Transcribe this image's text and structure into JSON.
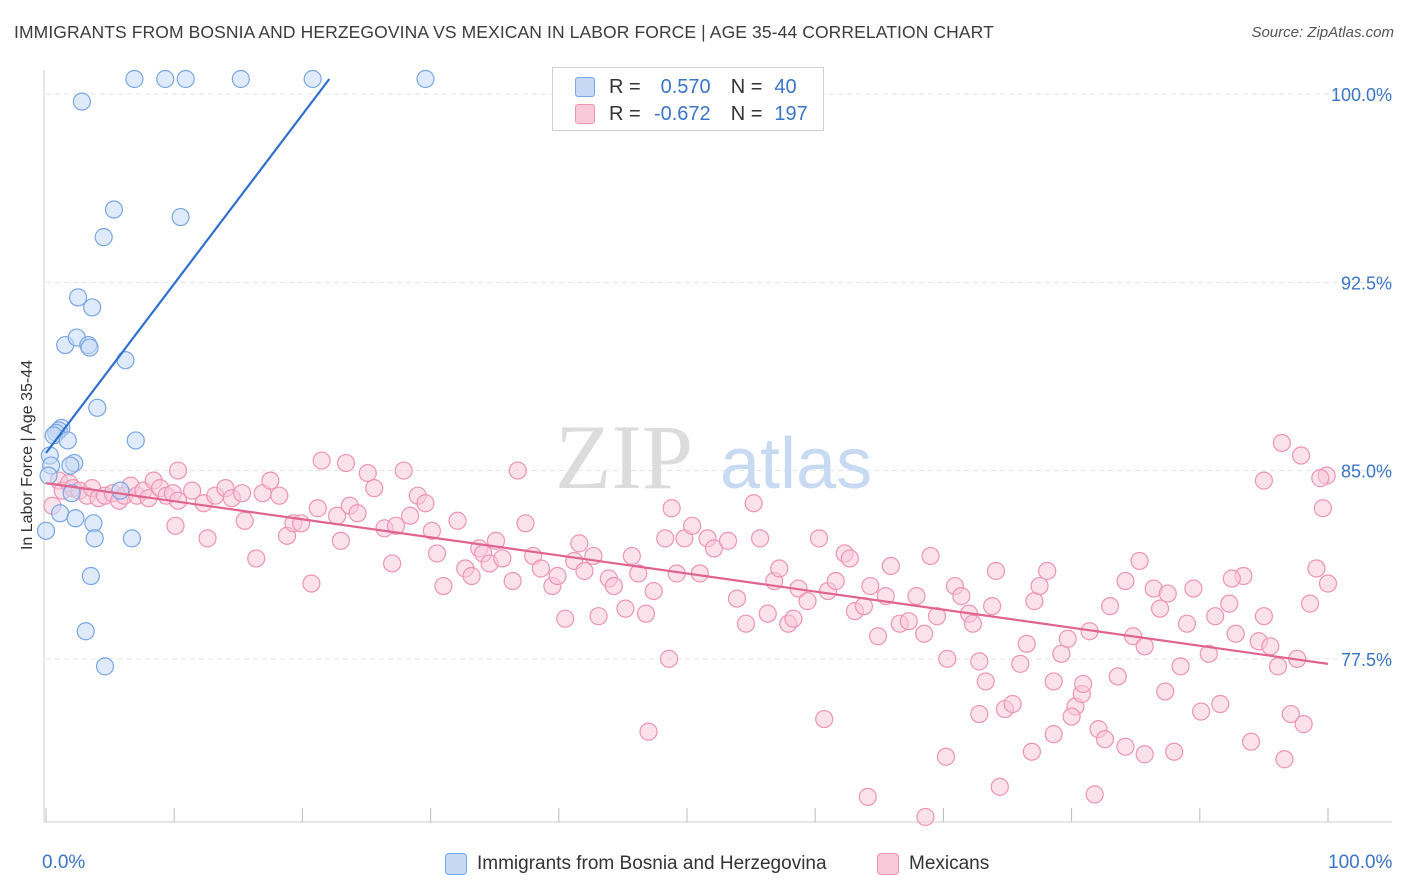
{
  "title": "IMMIGRANTS FROM BOSNIA AND HERZEGOVINA VS MEXICAN IN LABOR FORCE | AGE 35-44 CORRELATION CHART",
  "source": "Source: ZipAtlas.com",
  "watermark": {
    "zip": "ZIP",
    "atlas": "atlas"
  },
  "legend": {
    "r_label": "R =",
    "n_label": "N =",
    "rows": [
      {
        "r": "0.570",
        "n": "40"
      },
      {
        "r": "-0.672",
        "n": "197"
      }
    ]
  },
  "colors": {
    "bosnia_fill": "#c5d9f5",
    "bosnia_stroke": "#7aa6e3",
    "bosnia_line": "#2f6fcf",
    "mexican_fill": "#f8c9d8",
    "mexican_stroke": "#ee94b4",
    "mexican_line": "#e0648f",
    "tick_text": "#3b75c8",
    "grid": "#e3e3e3"
  },
  "chart_data": {
    "type": "scatter",
    "title": "IMMIGRANTS FROM BOSNIA AND HERZEGOVINA VS MEXICAN IN LABOR FORCE | AGE 35-44 CORRELATION CHART",
    "xlabel": "",
    "ylabel": "In Labor Force | Age 35-44",
    "xlim": [
      0,
      100
    ],
    "ylim": [
      71.0,
      100.6
    ],
    "x_tick_labels": [
      "0.0%",
      "100.0%"
    ],
    "y_ticks": [
      100.0,
      92.5,
      85.0,
      77.5
    ],
    "y_tick_labels": [
      "100.0%",
      "92.5%",
      "85.0%",
      "77.5%"
    ],
    "grid": true,
    "series": [
      {
        "name": "Immigrants from Bosnia and Herzegovina",
        "r": 0.57,
        "n": 40,
        "trendline": {
          "x": [
            0.0,
            22.1
          ],
          "y": [
            85.7,
            100.6
          ]
        },
        "points": [
          [
            6.9,
            100.6
          ],
          [
            9.3,
            100.6
          ],
          [
            10.9,
            100.6
          ],
          [
            15.2,
            100.6
          ],
          [
            20.8,
            100.6
          ],
          [
            29.6,
            100.6
          ],
          [
            2.8,
            99.7
          ],
          [
            5.3,
            95.4
          ],
          [
            10.5,
            95.1
          ],
          [
            4.5,
            94.3
          ],
          [
            2.5,
            91.9
          ],
          [
            3.6,
            91.5
          ],
          [
            1.5,
            90.0
          ],
          [
            2.4,
            90.3
          ],
          [
            3.3,
            90.0
          ],
          [
            3.4,
            89.9
          ],
          [
            6.2,
            89.4
          ],
          [
            4.0,
            87.5
          ],
          [
            1.2,
            86.7
          ],
          [
            1.0,
            86.6
          ],
          [
            0.8,
            86.5
          ],
          [
            0.6,
            86.4
          ],
          [
            1.7,
            86.2
          ],
          [
            7.0,
            86.2
          ],
          [
            0.3,
            85.6
          ],
          [
            0.4,
            85.2
          ],
          [
            2.2,
            85.3
          ],
          [
            1.9,
            85.2
          ],
          [
            0.2,
            84.8
          ],
          [
            2.0,
            84.1
          ],
          [
            5.8,
            84.2
          ],
          [
            1.1,
            83.3
          ],
          [
            2.3,
            83.1
          ],
          [
            3.7,
            82.9
          ],
          [
            3.8,
            82.3
          ],
          [
            6.7,
            82.3
          ],
          [
            0.0,
            82.6
          ],
          [
            3.5,
            80.8
          ],
          [
            3.1,
            78.6
          ],
          [
            4.6,
            77.2
          ]
        ]
      },
      {
        "name": "Mexicans",
        "r": -0.672,
        "n": 197,
        "trendline": {
          "x": [
            0.0,
            100.0
          ],
          "y": [
            84.5,
            77.3
          ]
        },
        "points": [
          [
            0.5,
            83.6
          ],
          [
            1.0,
            84.6
          ],
          [
            1.3,
            84.2
          ],
          [
            1.8,
            84.5
          ],
          [
            2.1,
            84.3
          ],
          [
            2.6,
            84.2
          ],
          [
            3.2,
            84.0
          ],
          [
            3.6,
            84.3
          ],
          [
            4.1,
            83.9
          ],
          [
            4.6,
            84.0
          ],
          [
            5.2,
            84.1
          ],
          [
            5.7,
            83.8
          ],
          [
            6.1,
            84.0
          ],
          [
            6.6,
            84.4
          ],
          [
            7.1,
            84.0
          ],
          [
            7.6,
            84.2
          ],
          [
            8.0,
            83.9
          ],
          [
            8.4,
            84.6
          ],
          [
            8.9,
            84.3
          ],
          [
            9.4,
            84.0
          ],
          [
            9.9,
            84.1
          ],
          [
            10.3,
            83.8
          ],
          [
            10.1,
            82.8
          ],
          [
            10.3,
            85.0
          ],
          [
            11.4,
            84.2
          ],
          [
            12.3,
            83.7
          ],
          [
            12.6,
            82.3
          ],
          [
            13.2,
            84.0
          ],
          [
            14.0,
            84.3
          ],
          [
            14.5,
            83.9
          ],
          [
            15.3,
            84.1
          ],
          [
            15.5,
            83.0
          ],
          [
            16.4,
            81.5
          ],
          [
            16.9,
            84.1
          ],
          [
            17.5,
            84.6
          ],
          [
            18.2,
            84.0
          ],
          [
            18.8,
            82.4
          ],
          [
            19.3,
            82.9
          ],
          [
            19.9,
            82.9
          ],
          [
            20.7,
            80.5
          ],
          [
            21.2,
            83.5
          ],
          [
            21.5,
            85.4
          ],
          [
            22.7,
            83.2
          ],
          [
            23.0,
            82.2
          ],
          [
            23.4,
            85.3
          ],
          [
            23.7,
            83.6
          ],
          [
            24.3,
            83.3
          ],
          [
            25.1,
            84.9
          ],
          [
            25.6,
            84.3
          ],
          [
            26.4,
            82.7
          ],
          [
            27.0,
            81.3
          ],
          [
            27.3,
            82.8
          ],
          [
            27.9,
            85.0
          ],
          [
            28.4,
            83.2
          ],
          [
            29.0,
            84.0
          ],
          [
            29.6,
            83.7
          ],
          [
            30.1,
            82.6
          ],
          [
            30.5,
            81.7
          ],
          [
            31.0,
            80.4
          ],
          [
            32.1,
            83.0
          ],
          [
            32.7,
            81.1
          ],
          [
            33.2,
            80.8
          ],
          [
            33.8,
            81.9
          ],
          [
            34.1,
            81.7
          ],
          [
            34.6,
            81.3
          ],
          [
            35.1,
            82.2
          ],
          [
            35.6,
            81.5
          ],
          [
            36.4,
            80.6
          ],
          [
            36.8,
            85.0
          ],
          [
            37.4,
            82.9
          ],
          [
            38.0,
            81.6
          ],
          [
            38.6,
            81.1
          ],
          [
            39.5,
            80.4
          ],
          [
            39.9,
            80.8
          ],
          [
            40.5,
            79.1
          ],
          [
            41.2,
            81.4
          ],
          [
            41.6,
            82.1
          ],
          [
            42.0,
            81.0
          ],
          [
            42.7,
            81.6
          ],
          [
            43.1,
            79.2
          ],
          [
            43.9,
            80.7
          ],
          [
            44.3,
            80.4
          ],
          [
            45.2,
            79.5
          ],
          [
            45.7,
            81.6
          ],
          [
            46.2,
            80.9
          ],
          [
            46.8,
            79.3
          ],
          [
            47.4,
            80.2
          ],
          [
            48.3,
            82.3
          ],
          [
            48.8,
            83.5
          ],
          [
            49.2,
            80.9
          ],
          [
            49.8,
            82.3
          ],
          [
            50.4,
            82.8
          ],
          [
            51.0,
            80.9
          ],
          [
            51.6,
            82.3
          ],
          [
            52.1,
            81.9
          ],
          [
            53.2,
            82.2
          ],
          [
            53.9,
            79.9
          ],
          [
            54.6,
            78.9
          ],
          [
            55.2,
            83.7
          ],
          [
            55.7,
            82.3
          ],
          [
            56.3,
            79.3
          ],
          [
            56.8,
            80.6
          ],
          [
            57.2,
            81.1
          ],
          [
            57.9,
            78.9
          ],
          [
            58.3,
            79.1
          ],
          [
            58.7,
            80.3
          ],
          [
            59.4,
            79.8
          ],
          [
            60.3,
            82.3
          ],
          [
            61.0,
            80.2
          ],
          [
            61.6,
            80.6
          ],
          [
            62.3,
            81.7
          ],
          [
            62.7,
            81.5
          ],
          [
            63.1,
            79.4
          ],
          [
            63.8,
            79.6
          ],
          [
            64.3,
            80.4
          ],
          [
            64.9,
            78.4
          ],
          [
            65.5,
            80.0
          ],
          [
            65.9,
            81.2
          ],
          [
            66.6,
            78.9
          ],
          [
            67.3,
            79.0
          ],
          [
            67.9,
            80.0
          ],
          [
            68.5,
            78.5
          ],
          [
            69.0,
            81.6
          ],
          [
            69.5,
            79.2
          ],
          [
            70.3,
            77.5
          ],
          [
            70.9,
            80.4
          ],
          [
            71.4,
            80.0
          ],
          [
            72.0,
            79.3
          ],
          [
            72.3,
            78.9
          ],
          [
            72.8,
            77.4
          ],
          [
            73.3,
            76.6
          ],
          [
            73.8,
            79.6
          ],
          [
            74.1,
            81.0
          ],
          [
            74.8,
            75.5
          ],
          [
            75.4,
            75.7
          ],
          [
            76.0,
            77.3
          ],
          [
            76.5,
            78.1
          ],
          [
            77.1,
            79.8
          ],
          [
            77.5,
            80.4
          ],
          [
            78.1,
            81.0
          ],
          [
            78.6,
            76.6
          ],
          [
            79.2,
            77.7
          ],
          [
            79.7,
            78.3
          ],
          [
            80.3,
            75.6
          ],
          [
            80.8,
            76.1
          ],
          [
            81.4,
            78.6
          ],
          [
            82.1,
            74.7
          ],
          [
            82.6,
            74.3
          ],
          [
            83.0,
            79.6
          ],
          [
            83.6,
            76.8
          ],
          [
            84.2,
            80.6
          ],
          [
            84.8,
            78.4
          ],
          [
            85.3,
            81.4
          ],
          [
            85.7,
            78.0
          ],
          [
            86.4,
            80.3
          ],
          [
            86.9,
            79.5
          ],
          [
            87.5,
            80.1
          ],
          [
            88.0,
            73.8
          ],
          [
            88.5,
            77.2
          ],
          [
            89.0,
            78.9
          ],
          [
            89.5,
            80.3
          ],
          [
            90.1,
            75.4
          ],
          [
            90.7,
            77.7
          ],
          [
            91.2,
            79.2
          ],
          [
            91.6,
            75.7
          ],
          [
            92.3,
            79.7
          ],
          [
            92.8,
            78.5
          ],
          [
            93.4,
            80.8
          ],
          [
            94.0,
            74.2
          ],
          [
            94.6,
            78.2
          ],
          [
            95.0,
            79.2
          ],
          [
            95.5,
            78.0
          ],
          [
            96.1,
            77.2
          ],
          [
            96.6,
            73.5
          ],
          [
            97.1,
            75.3
          ],
          [
            97.6,
            77.5
          ],
          [
            98.1,
            74.9
          ],
          [
            98.6,
            79.7
          ],
          [
            99.1,
            81.1
          ],
          [
            99.6,
            83.5
          ],
          [
            99.9,
            84.8
          ],
          [
            99.4,
            84.7
          ],
          [
            100.0,
            80.5
          ],
          [
            96.4,
            86.1
          ],
          [
            97.9,
            85.6
          ],
          [
            95.0,
            84.6
          ],
          [
            92.5,
            80.7
          ],
          [
            87.3,
            76.2
          ],
          [
            85.7,
            73.7
          ],
          [
            84.2,
            74.0
          ],
          [
            81.8,
            72.1
          ],
          [
            80.9,
            76.5
          ],
          [
            80.0,
            75.2
          ],
          [
            78.6,
            74.5
          ],
          [
            76.9,
            73.8
          ],
          [
            74.4,
            72.4
          ],
          [
            72.8,
            75.3
          ],
          [
            70.2,
            73.6
          ],
          [
            60.7,
            75.1
          ],
          [
            48.6,
            77.5
          ],
          [
            47.0,
            74.6
          ],
          [
            68.6,
            71.2
          ],
          [
            64.1,
            72.0
          ]
        ]
      }
    ]
  },
  "bottom_legend": [
    {
      "label": "Immigrants from Bosnia and Herzegovina"
    },
    {
      "label": "Mexicans"
    }
  ]
}
